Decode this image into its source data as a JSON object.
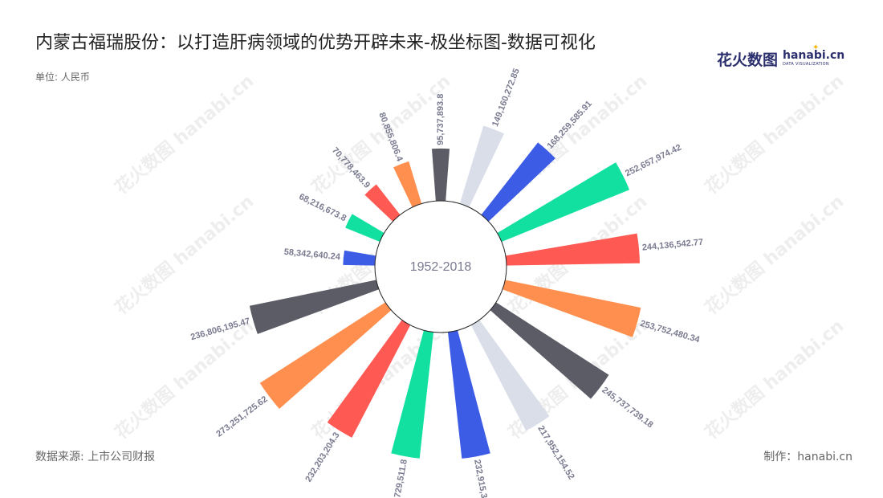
{
  "title": "内蒙古福瑞股份：以打造肝病领域的优势开辟未来-极坐标图-数据可视化",
  "unit": "单位: 人民币",
  "logo": {
    "cn": "花火数图",
    "en": "hanabi.cn",
    "sub": "DATA VISUALIZATION"
  },
  "watermark_text": "花火数图 hanabi.cn",
  "source": "数据来源: 上市公司财报",
  "maker": "制作：hanabi.cn",
  "chart_data": {
    "type": "bar",
    "polar": true,
    "center_label": "1952-2018",
    "values": [
      95737893.8,
      149160272.85,
      168259585.91,
      252657974.42,
      244136542.77,
      253752480.34,
      245737739.18,
      217952154.52,
      232915359.1,
      232729511.8,
      232203204.3,
      273251725.62,
      236806195.47,
      58342640.24,
      68216673.8,
      70778463.9,
      80855806.4
    ],
    "labels": [
      "95,737,893.8",
      "149,160,272.85",
      "168,259,585.91",
      "252,657,974.42",
      "244,136,542.77",
      "253,752,480.34",
      "245,737,739.18",
      "217,952,154.52",
      "232,915,359.1",
      "232,729,511.8",
      "232,203,204.3",
      "273,251,725.62",
      "236,806,195.47",
      "58,342,640.24",
      "68,216,673.8",
      "70,778,463.9",
      "80,855,806.4"
    ],
    "colors": [
      "#5b5c66",
      "#d9dee9",
      "#3d5ce6",
      "#12e0a1",
      "#ff5953",
      "#ff8f4e",
      "#5b5c66",
      "#d9dee9",
      "#3d5ce6",
      "#12e0a1",
      "#ff5953",
      "#ff8f4e",
      "#5b5c66",
      "#3d5ce6",
      "#12e0a1",
      "#ff5953",
      "#ff8f4e"
    ]
  }
}
